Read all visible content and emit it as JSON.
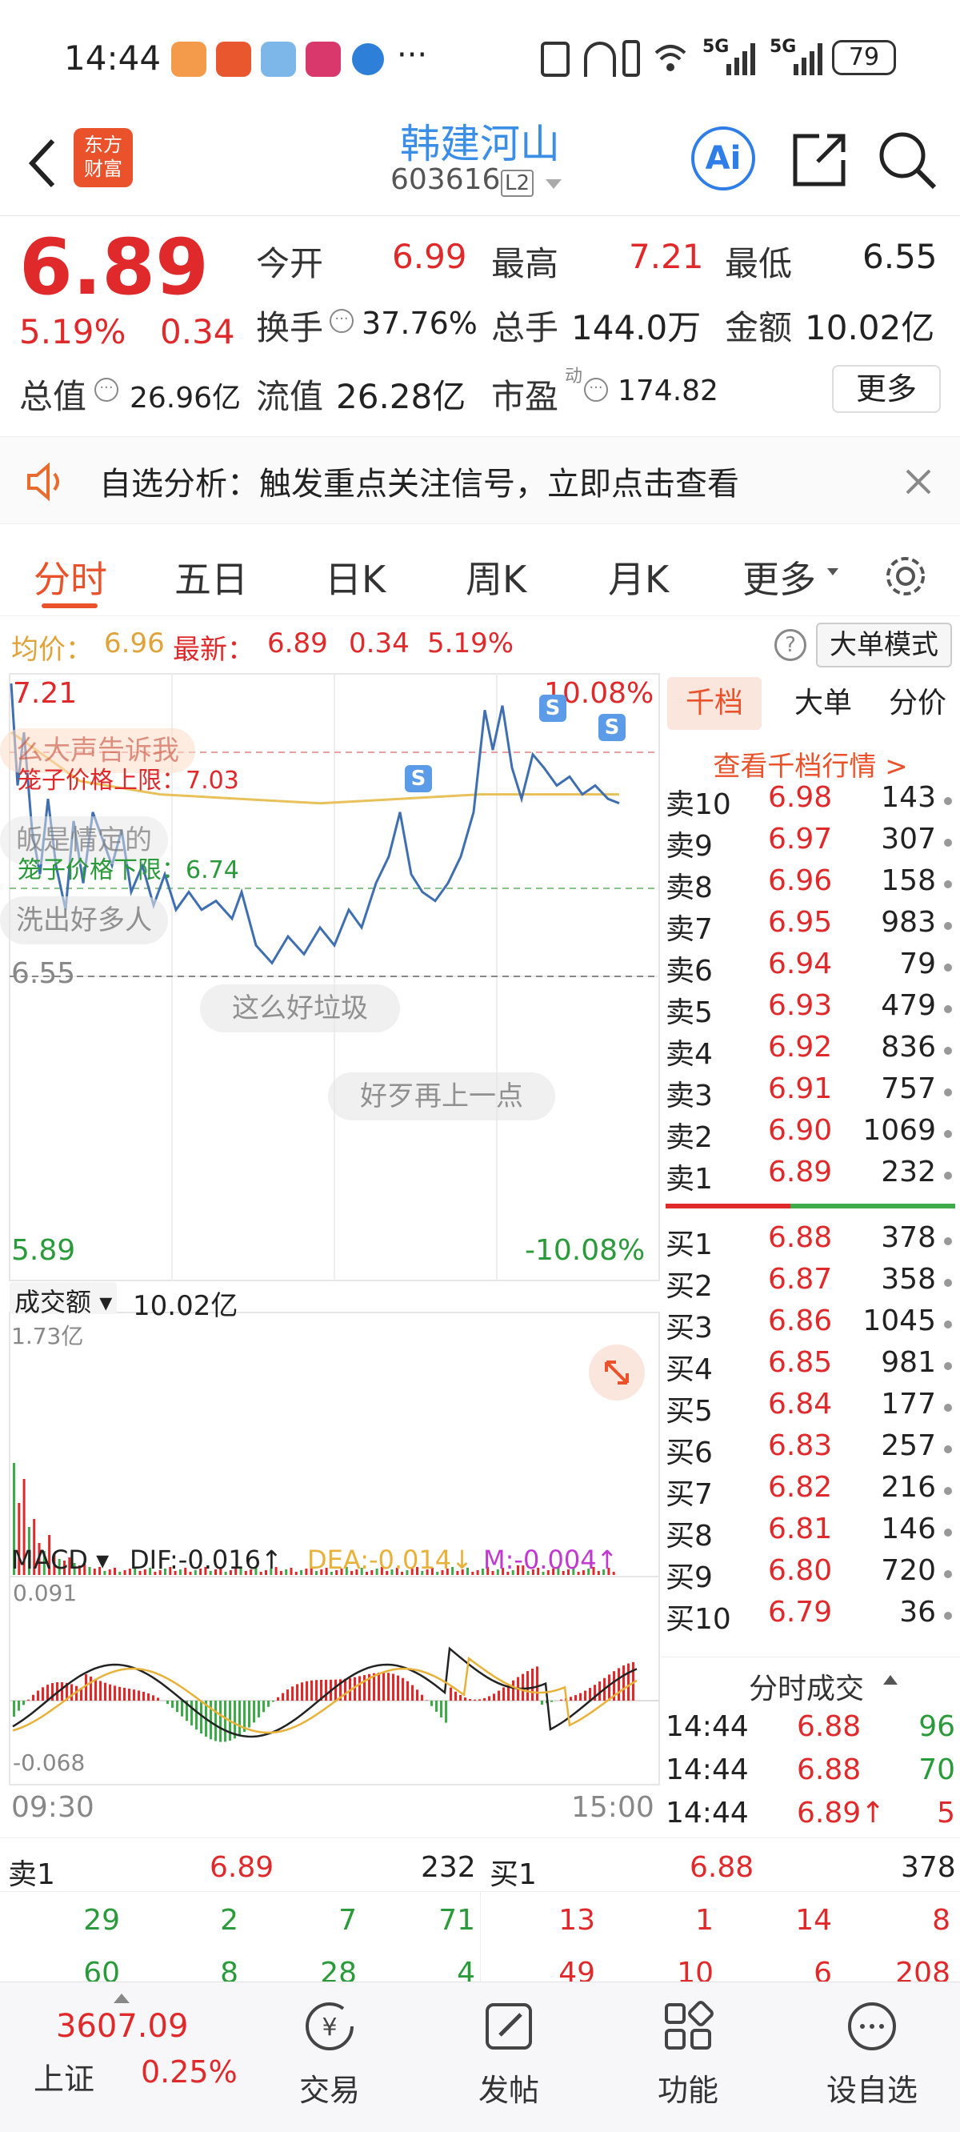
{
  "status": {
    "time": "14:44",
    "dots": "···",
    "net1": "5G",
    "net2": "5G",
    "battery": "79"
  },
  "header": {
    "logo_line1": "东方",
    "logo_line2": "财富",
    "title": "韩建河山",
    "code": "603616",
    "level": "L2",
    "ai": "Ai"
  },
  "quote": {
    "price": "6.89",
    "change_pct": "5.19%",
    "change": "0.34",
    "open_label": "今开",
    "open": "6.99",
    "high_label": "最高",
    "high": "7.21",
    "low_label": "最低",
    "low": "6.55",
    "turnover_label": "换手",
    "turnover": "37.76%",
    "volume_label": "总手",
    "volume": "144.0万",
    "amount_label": "金额",
    "amount": "10.02亿",
    "mktcap_label": "总值",
    "mktcap": "26.96亿",
    "float_label": "流值",
    "float": "26.28亿",
    "pe_label": "市盈",
    "pe_sup": "动",
    "pe": "174.82",
    "more": "更多"
  },
  "notice": {
    "text": "自选分析：触发重点关注信号，立即点击查看"
  },
  "tabs": [
    "分时",
    "五日",
    "日K",
    "周K",
    "月K",
    "更多"
  ],
  "infobar": {
    "avg_label": "均价：",
    "avg": "6.96",
    "latest_label": "最新：",
    "latest": "6.89",
    "chg": "0.34",
    "pct": "5.19%",
    "mode": "大单模式"
  },
  "chart": {
    "top_price": "7.21",
    "top_pct": "10.08%",
    "upper_limit": "笼子价格上限：7.03",
    "lower_limit": "笼子价格下限：6.74",
    "low_price": "6.55",
    "bottom_price": "5.89",
    "bottom_pct": "-10.08%",
    "danmaku": [
      "么大声告诉我",
      "这么好垃圾",
      "好歹再上一点",
      "洗出好多人",
      "皈是情定的"
    ],
    "s_mark": "S",
    "vol_label": "成交额",
    "vol_value": "10.02亿",
    "vol_max": "1.73亿",
    "macd_label": "MACD",
    "dif": "DIF:-0.016↑",
    "dea": "DEA:-0.014↓",
    "m": "M:-0.004↑",
    "macd_max": "0.091",
    "macd_min": "-0.068",
    "time_start": "09:30",
    "time_end": "15:00"
  },
  "orderbook": {
    "tabs": [
      "千档",
      "大单",
      "分价"
    ],
    "link": "查看千档行情 >",
    "asks": [
      [
        "卖10",
        "6.98",
        "143"
      ],
      [
        "卖9",
        "6.97",
        "307"
      ],
      [
        "卖8",
        "6.96",
        "158"
      ],
      [
        "卖7",
        "6.95",
        "983"
      ],
      [
        "卖6",
        "6.94",
        "79"
      ],
      [
        "卖5",
        "6.93",
        "479"
      ],
      [
        "卖4",
        "6.92",
        "836"
      ],
      [
        "卖3",
        "6.91",
        "757"
      ],
      [
        "卖2",
        "6.90",
        "1069"
      ],
      [
        "卖1",
        "6.89",
        "232"
      ]
    ],
    "bids": [
      [
        "买1",
        "6.88",
        "378"
      ],
      [
        "买2",
        "6.87",
        "358"
      ],
      [
        "买3",
        "6.86",
        "1045"
      ],
      [
        "买4",
        "6.85",
        "981"
      ],
      [
        "买5",
        "6.84",
        "177"
      ],
      [
        "买6",
        "6.83",
        "257"
      ],
      [
        "买7",
        "6.82",
        "216"
      ],
      [
        "买8",
        "6.81",
        "146"
      ],
      [
        "买9",
        "6.80",
        "720"
      ],
      [
        "买10",
        "6.79",
        "36"
      ]
    ],
    "trades_title": "分时成交",
    "trades": [
      [
        "14:44",
        "6.88",
        "96"
      ],
      [
        "14:44",
        "6.88",
        "70"
      ],
      [
        "14:44",
        "6.89↑",
        "5"
      ]
    ]
  },
  "bottom": {
    "ask_label": "卖1",
    "ask_price": "6.89",
    "ask_vol": "232",
    "bid_label": "买1",
    "bid_price": "6.88",
    "bid_vol": "378",
    "row1": [
      "29",
      "2",
      "7",
      "71",
      "13",
      "1",
      "14",
      "8"
    ],
    "row2": [
      "60",
      "8",
      "28",
      "4",
      "49",
      "10",
      "6",
      "208"
    ]
  },
  "nav": {
    "index_value": "3607.09",
    "index_name": "上证",
    "index_pct": "0.25%",
    "items": [
      "交易",
      "发帖",
      "功能",
      "设自选"
    ]
  }
}
